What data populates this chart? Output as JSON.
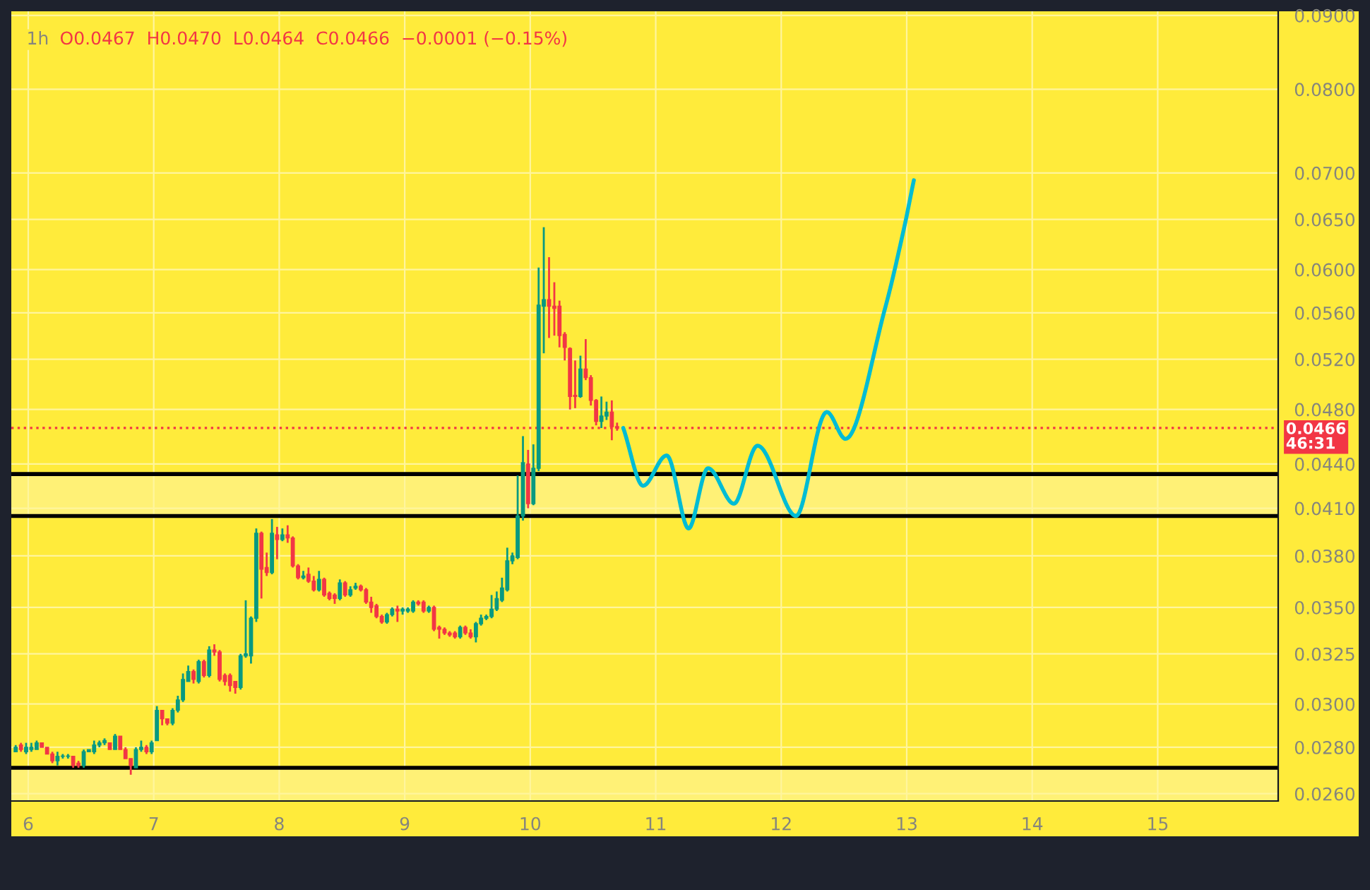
{
  "chart_data": {
    "type": "candlestick",
    "title": "1h",
    "subtitle": "O0.0467  H0.0470  L0.0464  C0.0466  −0.0001 (−0.15%)",
    "log": true,
    "grid": true,
    "xlim": [
      5.865,
      15.96
    ],
    "xticks": [
      6,
      7,
      8,
      9,
      10,
      11,
      12,
      13,
      14,
      15
    ],
    "ylim": [
      0.0257,
      0.0906
    ],
    "yticks": [
      {
        "value": 0.09,
        "label": "0.0900"
      },
      {
        "value": 0.08,
        "label": "0.0800"
      },
      {
        "value": 0.07,
        "label": "0.0700"
      },
      {
        "value": 0.065,
        "label": "0.0650"
      },
      {
        "value": 0.06,
        "label": "0.0600"
      },
      {
        "value": 0.056,
        "label": "0.0560"
      },
      {
        "value": 0.052,
        "label": "0.0520"
      },
      {
        "value": 0.048,
        "label": "0.0480"
      },
      {
        "value": 0.044,
        "label": "0.0440"
      },
      {
        "value": 0.041,
        "label": "0.0410"
      },
      {
        "value": 0.038,
        "label": "0.0380"
      },
      {
        "value": 0.035,
        "label": "0.0350"
      },
      {
        "value": 0.0325,
        "label": "0.0325"
      },
      {
        "value": 0.03,
        "label": "0.0300"
      },
      {
        "value": 0.028,
        "label": "0.0280"
      },
      {
        "value": 0.026,
        "label": "0.0260"
      }
    ],
    "x": [
      5.9,
      5.942,
      5.983,
      6.025,
      6.067,
      6.108,
      6.15,
      6.192,
      6.233,
      6.275,
      6.317,
      6.358,
      6.4,
      6.442,
      6.483,
      6.525,
      6.567,
      6.608,
      6.65,
      6.692,
      6.733,
      6.775,
      6.817,
      6.858,
      6.9,
      6.942,
      6.983,
      7.025,
      7.067,
      7.108,
      7.15,
      7.192,
      7.233,
      7.275,
      7.317,
      7.358,
      7.4,
      7.442,
      7.483,
      7.525,
      7.567,
      7.608,
      7.65,
      7.692,
      7.733,
      7.775,
      7.817,
      7.858,
      7.9,
      7.942,
      7.983,
      8.025,
      8.067,
      8.108,
      8.15,
      8.192,
      8.233,
      8.275,
      8.317,
      8.358,
      8.4,
      8.442,
      8.483,
      8.525,
      8.567,
      8.608,
      8.65,
      8.692,
      8.733,
      8.775,
      8.817,
      8.858,
      8.9,
      8.942,
      8.983,
      9.025,
      9.067,
      9.108,
      9.15,
      9.192,
      9.233,
      9.275,
      9.317,
      9.358,
      9.4,
      9.442,
      9.483,
      9.525,
      9.567,
      9.608,
      9.65,
      9.692,
      9.733,
      9.775,
      9.817,
      9.858,
      9.9,
      9.942,
      9.983,
      10.025,
      10.067,
      10.108,
      10.15,
      10.192,
      10.233,
      10.275,
      10.317,
      10.358,
      10.4,
      10.442,
      10.483,
      10.525,
      10.567,
      10.608,
      10.65,
      10.692
    ],
    "ohlc": [
      [
        0.0278,
        0.0281,
        0.0278,
        0.028
      ],
      [
        0.0281,
        0.0282,
        0.0278,
        0.0279
      ],
      [
        0.0278,
        0.0282,
        0.0277,
        0.028
      ],
      [
        0.0279,
        0.0282,
        0.0278,
        0.028
      ],
      [
        0.0279,
        0.0283,
        0.0279,
        0.0282
      ],
      [
        0.0282,
        0.0282,
        0.028,
        0.028
      ],
      [
        0.028,
        0.028,
        0.0277,
        0.0277
      ],
      [
        0.0277,
        0.0278,
        0.0273,
        0.0274
      ],
      [
        0.0274,
        0.0278,
        0.0272,
        0.0276
      ],
      [
        0.0276,
        0.0277,
        0.0275,
        0.0276
      ],
      [
        0.0276,
        0.0277,
        0.0275,
        0.0276
      ],
      [
        0.0276,
        0.0276,
        0.0271,
        0.0272
      ],
      [
        0.0273,
        0.0274,
        0.0271,
        0.0272
      ],
      [
        0.0272,
        0.0279,
        0.0271,
        0.0278
      ],
      [
        0.0278,
        0.0279,
        0.0278,
        0.0279
      ],
      [
        0.0278,
        0.0283,
        0.0277,
        0.0281
      ],
      [
        0.0281,
        0.0283,
        0.028,
        0.0282
      ],
      [
        0.0282,
        0.0284,
        0.0281,
        0.0283
      ],
      [
        0.0282,
        0.0282,
        0.0279,
        0.0279
      ],
      [
        0.0279,
        0.0286,
        0.0279,
        0.0285
      ],
      [
        0.0285,
        0.0285,
        0.0279,
        0.0279
      ],
      [
        0.0279,
        0.028,
        0.0275,
        0.0275
      ],
      [
        0.0275,
        0.0275,
        0.0268,
        0.0272
      ],
      [
        0.0271,
        0.028,
        0.0271,
        0.0279
      ],
      [
        0.0279,
        0.0283,
        0.0278,
        0.028
      ],
      [
        0.028,
        0.0281,
        0.0277,
        0.0278
      ],
      [
        0.0278,
        0.0283,
        0.0277,
        0.0282
      ],
      [
        0.0283,
        0.0299,
        0.0283,
        0.0297
      ],
      [
        0.0297,
        0.0297,
        0.029,
        0.0293
      ],
      [
        0.0293,
        0.0293,
        0.029,
        0.0291
      ],
      [
        0.0291,
        0.0298,
        0.029,
        0.0297
      ],
      [
        0.0297,
        0.0304,
        0.0296,
        0.0302
      ],
      [
        0.0302,
        0.0315,
        0.0301,
        0.0312
      ],
      [
        0.0311,
        0.0319,
        0.0311,
        0.0316
      ],
      [
        0.0316,
        0.0317,
        0.031,
        0.0312
      ],
      [
        0.0311,
        0.0322,
        0.031,
        0.0321
      ],
      [
        0.0321,
        0.0322,
        0.0313,
        0.0314
      ],
      [
        0.0314,
        0.0329,
        0.0313,
        0.0327
      ],
      [
        0.0327,
        0.033,
        0.0324,
        0.0326
      ],
      [
        0.0326,
        0.0327,
        0.0311,
        0.0312
      ],
      [
        0.0314,
        0.0315,
        0.0309,
        0.0311
      ],
      [
        0.0314,
        0.0315,
        0.0306,
        0.0309
      ],
      [
        0.0311,
        0.0311,
        0.0305,
        0.0308
      ],
      [
        0.0308,
        0.0325,
        0.0307,
        0.0324
      ],
      [
        0.0324,
        0.0354,
        0.0323,
        0.0325
      ],
      [
        0.0324,
        0.0345,
        0.032,
        0.0344
      ],
      [
        0.0344,
        0.0397,
        0.0342,
        0.0394
      ],
      [
        0.0394,
        0.0395,
        0.0355,
        0.0372
      ],
      [
        0.0373,
        0.0382,
        0.0368,
        0.037
      ],
      [
        0.037,
        0.0403,
        0.0369,
        0.0394
      ],
      [
        0.0393,
        0.0398,
        0.0378,
        0.039
      ],
      [
        0.039,
        0.0397,
        0.0389,
        0.0393
      ],
      [
        0.0393,
        0.0399,
        0.0388,
        0.0391
      ],
      [
        0.0391,
        0.0392,
        0.0373,
        0.0374
      ],
      [
        0.0374,
        0.0375,
        0.0366,
        0.0367
      ],
      [
        0.0367,
        0.0371,
        0.0366,
        0.0368
      ],
      [
        0.0369,
        0.0373,
        0.0364,
        0.0365
      ],
      [
        0.0365,
        0.0368,
        0.0359,
        0.036
      ],
      [
        0.036,
        0.0371,
        0.0359,
        0.0366
      ],
      [
        0.0366,
        0.0367,
        0.0356,
        0.0357
      ],
      [
        0.0358,
        0.0359,
        0.0354,
        0.0355
      ],
      [
        0.0357,
        0.0358,
        0.0352,
        0.0355
      ],
      [
        0.0355,
        0.0366,
        0.0354,
        0.0364
      ],
      [
        0.0364,
        0.0365,
        0.0356,
        0.0357
      ],
      [
        0.0357,
        0.0362,
        0.0356,
        0.036
      ],
      [
        0.0361,
        0.0364,
        0.036,
        0.0362
      ],
      [
        0.0362,
        0.0363,
        0.0359,
        0.036
      ],
      [
        0.036,
        0.0361,
        0.0352,
        0.0353
      ],
      [
        0.0353,
        0.0356,
        0.0347,
        0.035
      ],
      [
        0.0351,
        0.0352,
        0.0344,
        0.0345
      ],
      [
        0.0345,
        0.0346,
        0.0341,
        0.0342
      ],
      [
        0.0342,
        0.0347,
        0.0341,
        0.0346
      ],
      [
        0.0346,
        0.035,
        0.0345,
        0.0349
      ],
      [
        0.0349,
        0.0351,
        0.0342,
        0.0348
      ],
      [
        0.0348,
        0.035,
        0.0346,
        0.0349
      ],
      [
        0.0348,
        0.035,
        0.0347,
        0.0349
      ],
      [
        0.0348,
        0.0354,
        0.0347,
        0.0353
      ],
      [
        0.0353,
        0.0354,
        0.0351,
        0.0352
      ],
      [
        0.0353,
        0.0354,
        0.0347,
        0.0348
      ],
      [
        0.0348,
        0.0351,
        0.0347,
        0.035
      ],
      [
        0.035,
        0.0351,
        0.0337,
        0.0338
      ],
      [
        0.0339,
        0.034,
        0.0333,
        0.0338
      ],
      [
        0.0338,
        0.0339,
        0.0335,
        0.0336
      ],
      [
        0.0336,
        0.0337,
        0.0334,
        0.0335
      ],
      [
        0.0336,
        0.0337,
        0.0333,
        0.0334
      ],
      [
        0.0334,
        0.034,
        0.0333,
        0.0339
      ],
      [
        0.0339,
        0.034,
        0.0335,
        0.0336
      ],
      [
        0.0336,
        0.0338,
        0.0333,
        0.0334
      ],
      [
        0.0334,
        0.0342,
        0.0331,
        0.0341
      ],
      [
        0.0341,
        0.0346,
        0.034,
        0.0344
      ],
      [
        0.0344,
        0.0346,
        0.0343,
        0.0345
      ],
      [
        0.0345,
        0.0357,
        0.0344,
        0.0349
      ],
      [
        0.0349,
        0.0359,
        0.0348,
        0.0355
      ],
      [
        0.0354,
        0.0367,
        0.0353,
        0.0361
      ],
      [
        0.036,
        0.0385,
        0.0359,
        0.0377
      ],
      [
        0.0377,
        0.0382,
        0.0375,
        0.038
      ],
      [
        0.0379,
        0.0432,
        0.0378,
        0.0405
      ],
      [
        0.0405,
        0.046,
        0.0402,
        0.0441
      ],
      [
        0.044,
        0.045,
        0.041,
        0.0413
      ],
      [
        0.0413,
        0.0454,
        0.0412,
        0.0437
      ],
      [
        0.0437,
        0.0602,
        0.0435,
        0.0567
      ],
      [
        0.0566,
        0.0642,
        0.0525,
        0.0572
      ],
      [
        0.0572,
        0.0612,
        0.0538,
        0.0566
      ],
      [
        0.0566,
        0.0588,
        0.054,
        0.0564
      ],
      [
        0.0566,
        0.0571,
        0.053,
        0.054
      ],
      [
        0.0541,
        0.0543,
        0.0519,
        0.053
      ],
      [
        0.0529,
        0.053,
        0.048,
        0.049
      ],
      [
        0.0491,
        0.0519,
        0.0481,
        0.049
      ],
      [
        0.049,
        0.0523,
        0.0489,
        0.0512
      ],
      [
        0.0512,
        0.0537,
        0.0503,
        0.0505
      ],
      [
        0.0505,
        0.0507,
        0.0483,
        0.0487
      ],
      [
        0.0487,
        0.0488,
        0.0468,
        0.0471
      ],
      [
        0.0471,
        0.049,
        0.0466,
        0.0475
      ],
      [
        0.0475,
        0.0486,
        0.0472,
        0.0478
      ],
      [
        0.0478,
        0.0487,
        0.0457,
        0.0467
      ],
      [
        0.0467,
        0.047,
        0.0464,
        0.0466
      ]
    ],
    "series": [
      {
        "type": "line",
        "color": "#00bcd4",
        "line_style": "solid",
        "x": [
          10.741,
          10.899,
          11.087,
          11.262,
          11.417,
          11.623,
          11.811,
          12.118,
          12.363,
          12.512,
          12.832,
          12.982,
          13.057
        ],
        "values": [
          0.0466,
          0.0425,
          0.0446,
          0.0397,
          0.0437,
          0.0413,
          0.0453,
          0.0405,
          0.0478,
          0.0458,
          0.0566,
          0.0643,
          0.0692
        ]
      }
    ],
    "ref_lines": [
      {
        "axis": "y",
        "value": 0.0433,
        "color": "#000000",
        "line_style": "solid"
      },
      {
        "axis": "y",
        "value": 0.0405,
        "color": "#000000",
        "line_style": "solid"
      },
      {
        "axis": "y",
        "value": 0.0271,
        "color": "#000000",
        "line_style": "solid"
      },
      {
        "axis": "y",
        "value": 0.0466,
        "label": "0.0466\n46:31",
        "color": "#f23645",
        "line_style": "dotted"
      }
    ],
    "bands": [
      {
        "axis": "y",
        "from": 0.0405,
        "to": 0.0433,
        "color": "#fff176"
      },
      {
        "axis": "y",
        "from": 0.0257,
        "to": 0.0271,
        "color": "#fff176"
      }
    ]
  }
}
